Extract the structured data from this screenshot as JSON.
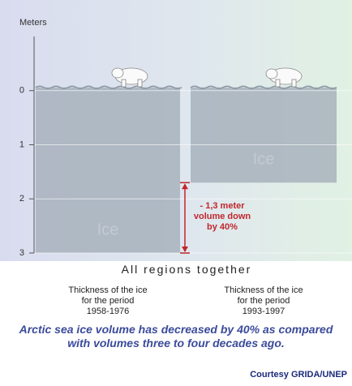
{
  "chart_data": {
    "type": "bar",
    "axis_label": "Meters",
    "categories": [
      "Thickness of the ice\nfor the period\n1958-1976",
      "Thickness of the ice\nfor the period\n1993-1997"
    ],
    "values": [
      3.0,
      1.7
    ],
    "bar_labels": [
      "Ice",
      "Ice"
    ],
    "color": "#a7b1bc",
    "ylim": [
      -1,
      3
    ],
    "yticks": [
      0,
      1,
      2,
      3
    ],
    "inverted_y": true,
    "grid": true,
    "xlabel": "All regions together",
    "annotation": "- 1,3 meter\nvolume down\nby 40%",
    "annotation_color": "#c1272d",
    "caption": "Arctic sea ice volume has decreased by 40% as compared with volumes three to four decades ago.",
    "credit": "Courtesy GRIDA/UNEP"
  }
}
